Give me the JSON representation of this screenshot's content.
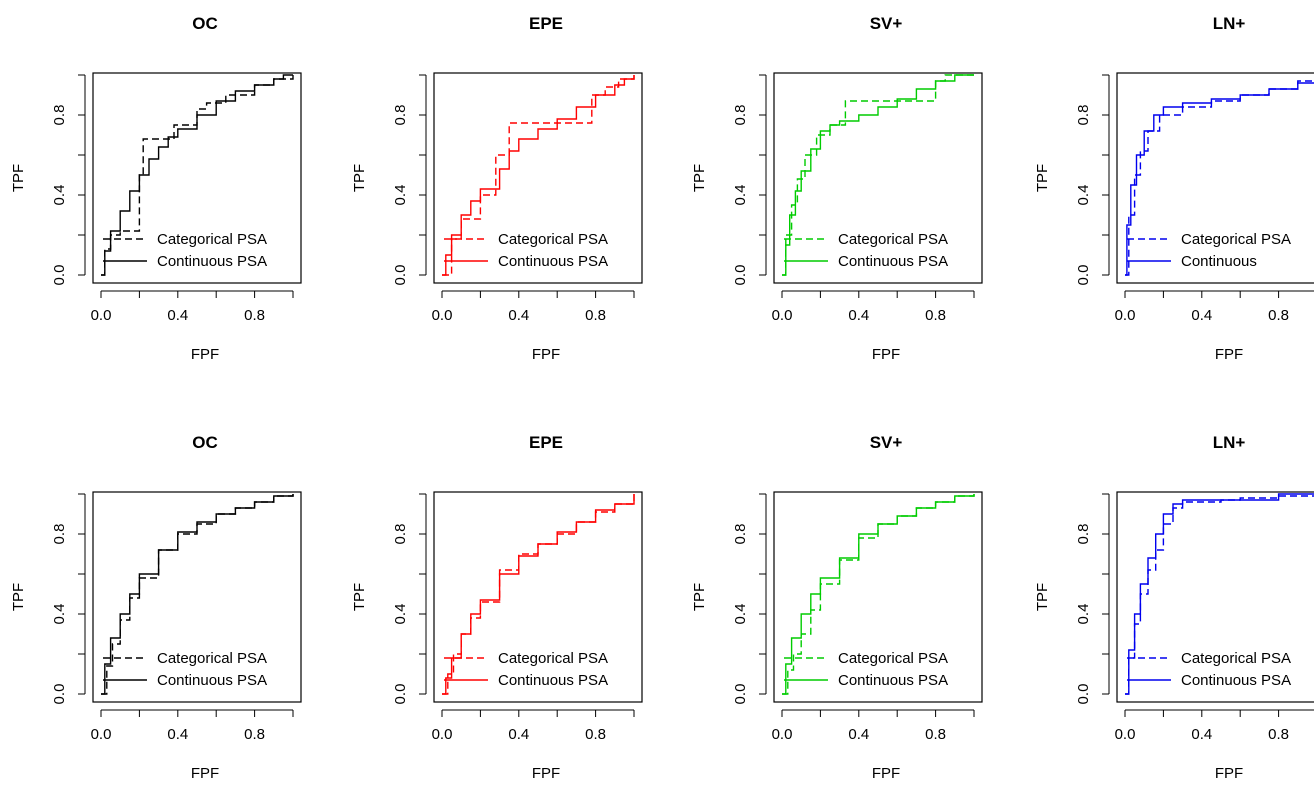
{
  "chart_data": [
    {
      "type": "line",
      "title": "OC",
      "xlabel": "FPF",
      "ylabel": "TPF",
      "color": "#000000",
      "xlim": [
        0,
        1
      ],
      "ylim": [
        0,
        1
      ],
      "xticks": [
        "0.0",
        "0.4",
        "0.8"
      ],
      "yticks": [
        "0.0",
        "0.4",
        "0.8"
      ],
      "legend_position": "bottom-right",
      "series": [
        {
          "name": "Categorical PSA",
          "style": "dashed",
          "x": [
            0,
            0.02,
            0.05,
            0.05,
            0.1,
            0.1,
            0.2,
            0.2,
            0.22,
            0.22,
            0.38,
            0.38,
            0.5,
            0.5,
            0.55,
            0.65,
            0.8,
            0.9,
            1.0
          ],
          "y": [
            0,
            0.13,
            0.18,
            0.2,
            0.2,
            0.22,
            0.22,
            0.5,
            0.5,
            0.68,
            0.68,
            0.75,
            0.75,
            0.83,
            0.86,
            0.9,
            0.95,
            0.98,
            1.0
          ]
        },
        {
          "name": "Continuous PSA",
          "style": "solid",
          "x": [
            0,
            0.02,
            0.05,
            0.1,
            0.15,
            0.2,
            0.25,
            0.3,
            0.35,
            0.4,
            0.5,
            0.6,
            0.7,
            0.8,
            0.9,
            0.95,
            1.0
          ],
          "y": [
            0,
            0.12,
            0.22,
            0.32,
            0.42,
            0.5,
            0.58,
            0.64,
            0.69,
            0.73,
            0.8,
            0.87,
            0.92,
            0.95,
            0.98,
            1.0,
            1.0
          ]
        }
      ]
    },
    {
      "type": "line",
      "title": "EPE",
      "xlabel": "FPF",
      "ylabel": "TPF",
      "color": "#ff0000",
      "xlim": [
        0,
        1
      ],
      "ylim": [
        0,
        1
      ],
      "xticks": [
        "0.0",
        "0.4",
        "0.8"
      ],
      "yticks": [
        "0.0",
        "0.4",
        "0.8"
      ],
      "legend_position": "bottom-right",
      "series": [
        {
          "name": "Categorical PSA",
          "style": "dashed",
          "x": [
            0,
            0.05,
            0.1,
            0.2,
            0.28,
            0.28,
            0.35,
            0.35,
            0.78,
            0.78,
            0.85,
            0.92,
            1.0
          ],
          "y": [
            0,
            0.18,
            0.28,
            0.4,
            0.48,
            0.6,
            0.6,
            0.76,
            0.76,
            0.9,
            0.94,
            0.98,
            1.0
          ]
        },
        {
          "name": "Continuous PSA",
          "style": "solid",
          "x": [
            0,
            0.02,
            0.05,
            0.1,
            0.15,
            0.2,
            0.3,
            0.35,
            0.4,
            0.5,
            0.6,
            0.7,
            0.8,
            0.9,
            0.95,
            1.0
          ],
          "y": [
            0,
            0.1,
            0.2,
            0.3,
            0.37,
            0.43,
            0.53,
            0.62,
            0.68,
            0.73,
            0.78,
            0.84,
            0.9,
            0.95,
            0.98,
            1.0
          ]
        }
      ]
    },
    {
      "type": "line",
      "title": "SV+",
      "xlabel": "FPF",
      "ylabel": "TPF",
      "color": "#00cc00",
      "xlim": [
        0,
        1
      ],
      "ylim": [
        0,
        1
      ],
      "xticks": [
        "0.0",
        "0.4",
        "0.8"
      ],
      "yticks": [
        "0.0",
        "0.4",
        "0.8"
      ],
      "legend_position": "bottom-right",
      "series": [
        {
          "name": "Categorical PSA",
          "style": "dashed",
          "x": [
            0,
            0.02,
            0.05,
            0.08,
            0.12,
            0.18,
            0.25,
            0.33,
            0.33,
            0.8,
            0.8,
            0.85,
            0.9,
            1.0
          ],
          "y": [
            0,
            0.2,
            0.35,
            0.48,
            0.6,
            0.7,
            0.75,
            0.75,
            0.87,
            0.87,
            0.97,
            1.0,
            1.0,
            1.0
          ]
        },
        {
          "name": "Continuous PSA",
          "style": "solid",
          "x": [
            0,
            0.02,
            0.04,
            0.07,
            0.1,
            0.15,
            0.2,
            0.25,
            0.3,
            0.4,
            0.5,
            0.6,
            0.7,
            0.8,
            0.9,
            1.0
          ],
          "y": [
            0,
            0.15,
            0.3,
            0.42,
            0.52,
            0.63,
            0.72,
            0.75,
            0.77,
            0.8,
            0.84,
            0.88,
            0.93,
            0.97,
            1.0,
            1.0
          ]
        }
      ]
    },
    {
      "type": "line",
      "title": "LN+",
      "xlabel": "FPF",
      "ylabel": "TPF",
      "color": "#0000ee",
      "xlim": [
        0,
        1
      ],
      "ylim": [
        0,
        1
      ],
      "xticks": [
        "0.0",
        "0.4",
        "0.8"
      ],
      "yticks": [
        "0.0",
        "0.4",
        "0.8"
      ],
      "legend_position": "bottom-right",
      "series": [
        {
          "name": "Categorical PSA",
          "style": "dashed",
          "x": [
            0,
            0.02,
            0.05,
            0.08,
            0.12,
            0.18,
            0.3,
            0.45,
            0.6,
            0.75,
            0.9,
            1.0
          ],
          "y": [
            0,
            0.3,
            0.5,
            0.62,
            0.72,
            0.8,
            0.84,
            0.87,
            0.9,
            0.93,
            0.97,
            1.0
          ]
        },
        {
          "name": "Continuous",
          "style": "solid",
          "x": [
            0,
            0.01,
            0.03,
            0.06,
            0.1,
            0.15,
            0.2,
            0.3,
            0.45,
            0.6,
            0.75,
            0.9,
            1.0
          ],
          "y": [
            0,
            0.25,
            0.45,
            0.6,
            0.72,
            0.8,
            0.84,
            0.86,
            0.88,
            0.9,
            0.93,
            0.96,
            1.0
          ]
        }
      ]
    },
    {
      "type": "line",
      "title": "OC",
      "xlabel": "FPF",
      "ylabel": "TPF",
      "color": "#000000",
      "xlim": [
        0,
        1
      ],
      "ylim": [
        0,
        1
      ],
      "xticks": [
        "0.0",
        "0.4",
        "0.8"
      ],
      "yticks": [
        "0.0",
        "0.4",
        "0.8"
      ],
      "legend_position": "bottom-right",
      "series": [
        {
          "name": "Categorical PSA",
          "style": "dashed",
          "x": [
            0,
            0.03,
            0.06,
            0.1,
            0.15,
            0.2,
            0.3,
            0.4,
            0.5,
            0.6,
            0.7,
            0.8,
            0.9,
            1.0
          ],
          "y": [
            0,
            0.14,
            0.25,
            0.37,
            0.48,
            0.58,
            0.72,
            0.8,
            0.85,
            0.9,
            0.93,
            0.96,
            0.99,
            1.0
          ]
        },
        {
          "name": "Continuous PSA",
          "style": "solid",
          "x": [
            0,
            0.02,
            0.05,
            0.1,
            0.15,
            0.2,
            0.3,
            0.4,
            0.5,
            0.6,
            0.7,
            0.8,
            0.9,
            1.0
          ],
          "y": [
            0,
            0.15,
            0.28,
            0.4,
            0.5,
            0.6,
            0.72,
            0.81,
            0.86,
            0.9,
            0.93,
            0.96,
            0.99,
            1.0
          ]
        }
      ]
    },
    {
      "type": "line",
      "title": "EPE",
      "xlabel": "FPF",
      "ylabel": "TPF",
      "color": "#ff0000",
      "xlim": [
        0,
        1
      ],
      "ylim": [
        0,
        1
      ],
      "xticks": [
        "0.0",
        "0.4",
        "0.8"
      ],
      "yticks": [
        "0.0",
        "0.4",
        "0.8"
      ],
      "legend_position": "bottom-right",
      "series": [
        {
          "name": "Categorical PSA",
          "style": "dashed",
          "x": [
            0,
            0.03,
            0.06,
            0.1,
            0.15,
            0.2,
            0.3,
            0.4,
            0.5,
            0.6,
            0.7,
            0.8,
            0.9,
            1.0
          ],
          "y": [
            0,
            0.1,
            0.2,
            0.3,
            0.38,
            0.46,
            0.62,
            0.7,
            0.75,
            0.8,
            0.86,
            0.91,
            0.95,
            1.0
          ]
        },
        {
          "name": "Continuous PSA",
          "style": "solid",
          "x": [
            0,
            0.02,
            0.05,
            0.1,
            0.15,
            0.2,
            0.3,
            0.4,
            0.5,
            0.6,
            0.7,
            0.8,
            0.9,
            1.0
          ],
          "y": [
            0,
            0.08,
            0.18,
            0.3,
            0.4,
            0.47,
            0.6,
            0.69,
            0.75,
            0.81,
            0.86,
            0.92,
            0.95,
            1.0
          ]
        }
      ]
    },
    {
      "type": "line",
      "title": "SV+",
      "xlabel": "FPF",
      "ylabel": "TPF",
      "color": "#00cc00",
      "xlim": [
        0,
        1
      ],
      "ylim": [
        0,
        1
      ],
      "xticks": [
        "0.0",
        "0.4",
        "0.8"
      ],
      "yticks": [
        "0.0",
        "0.4",
        "0.8"
      ],
      "legend_position": "bottom-right",
      "series": [
        {
          "name": "Categorical PSA",
          "style": "dashed",
          "x": [
            0,
            0.03,
            0.06,
            0.1,
            0.15,
            0.2,
            0.3,
            0.4,
            0.5,
            0.6,
            0.7,
            0.8,
            0.9,
            1.0
          ],
          "y": [
            0,
            0.12,
            0.2,
            0.3,
            0.42,
            0.55,
            0.67,
            0.78,
            0.85,
            0.89,
            0.93,
            0.96,
            0.99,
            1.0
          ]
        },
        {
          "name": "Continuous PSA",
          "style": "solid",
          "x": [
            0,
            0.02,
            0.05,
            0.1,
            0.15,
            0.2,
            0.3,
            0.4,
            0.5,
            0.6,
            0.7,
            0.8,
            0.9,
            1.0
          ],
          "y": [
            0,
            0.15,
            0.28,
            0.4,
            0.5,
            0.58,
            0.68,
            0.8,
            0.85,
            0.89,
            0.93,
            0.96,
            0.99,
            1.0
          ]
        }
      ]
    },
    {
      "type": "line",
      "title": "LN+",
      "xlabel": "FPF",
      "ylabel": "TPF",
      "color": "#0000ee",
      "xlim": [
        0,
        1
      ],
      "ylim": [
        0,
        1
      ],
      "xticks": [
        "0.0",
        "0.4",
        "0.8"
      ],
      "yticks": [
        "0.0",
        "0.4",
        "0.8"
      ],
      "legend_position": "bottom-right",
      "series": [
        {
          "name": "Categorical PSA",
          "style": "dashed",
          "x": [
            0,
            0.02,
            0.05,
            0.08,
            0.12,
            0.16,
            0.2,
            0.25,
            0.3,
            0.5,
            0.6,
            0.8,
            1.0
          ],
          "y": [
            0,
            0.18,
            0.35,
            0.5,
            0.62,
            0.72,
            0.85,
            0.93,
            0.96,
            0.97,
            0.98,
            0.99,
            1.0
          ]
        },
        {
          "name": "Continuous PSA",
          "style": "solid",
          "x": [
            0,
            0.02,
            0.05,
            0.08,
            0.12,
            0.16,
            0.2,
            0.25,
            0.3,
            0.5,
            0.8,
            0.8,
            1.0
          ],
          "y": [
            0,
            0.22,
            0.4,
            0.55,
            0.68,
            0.8,
            0.9,
            0.95,
            0.97,
            0.97,
            0.97,
            1.0,
            1.0
          ]
        }
      ]
    }
  ]
}
